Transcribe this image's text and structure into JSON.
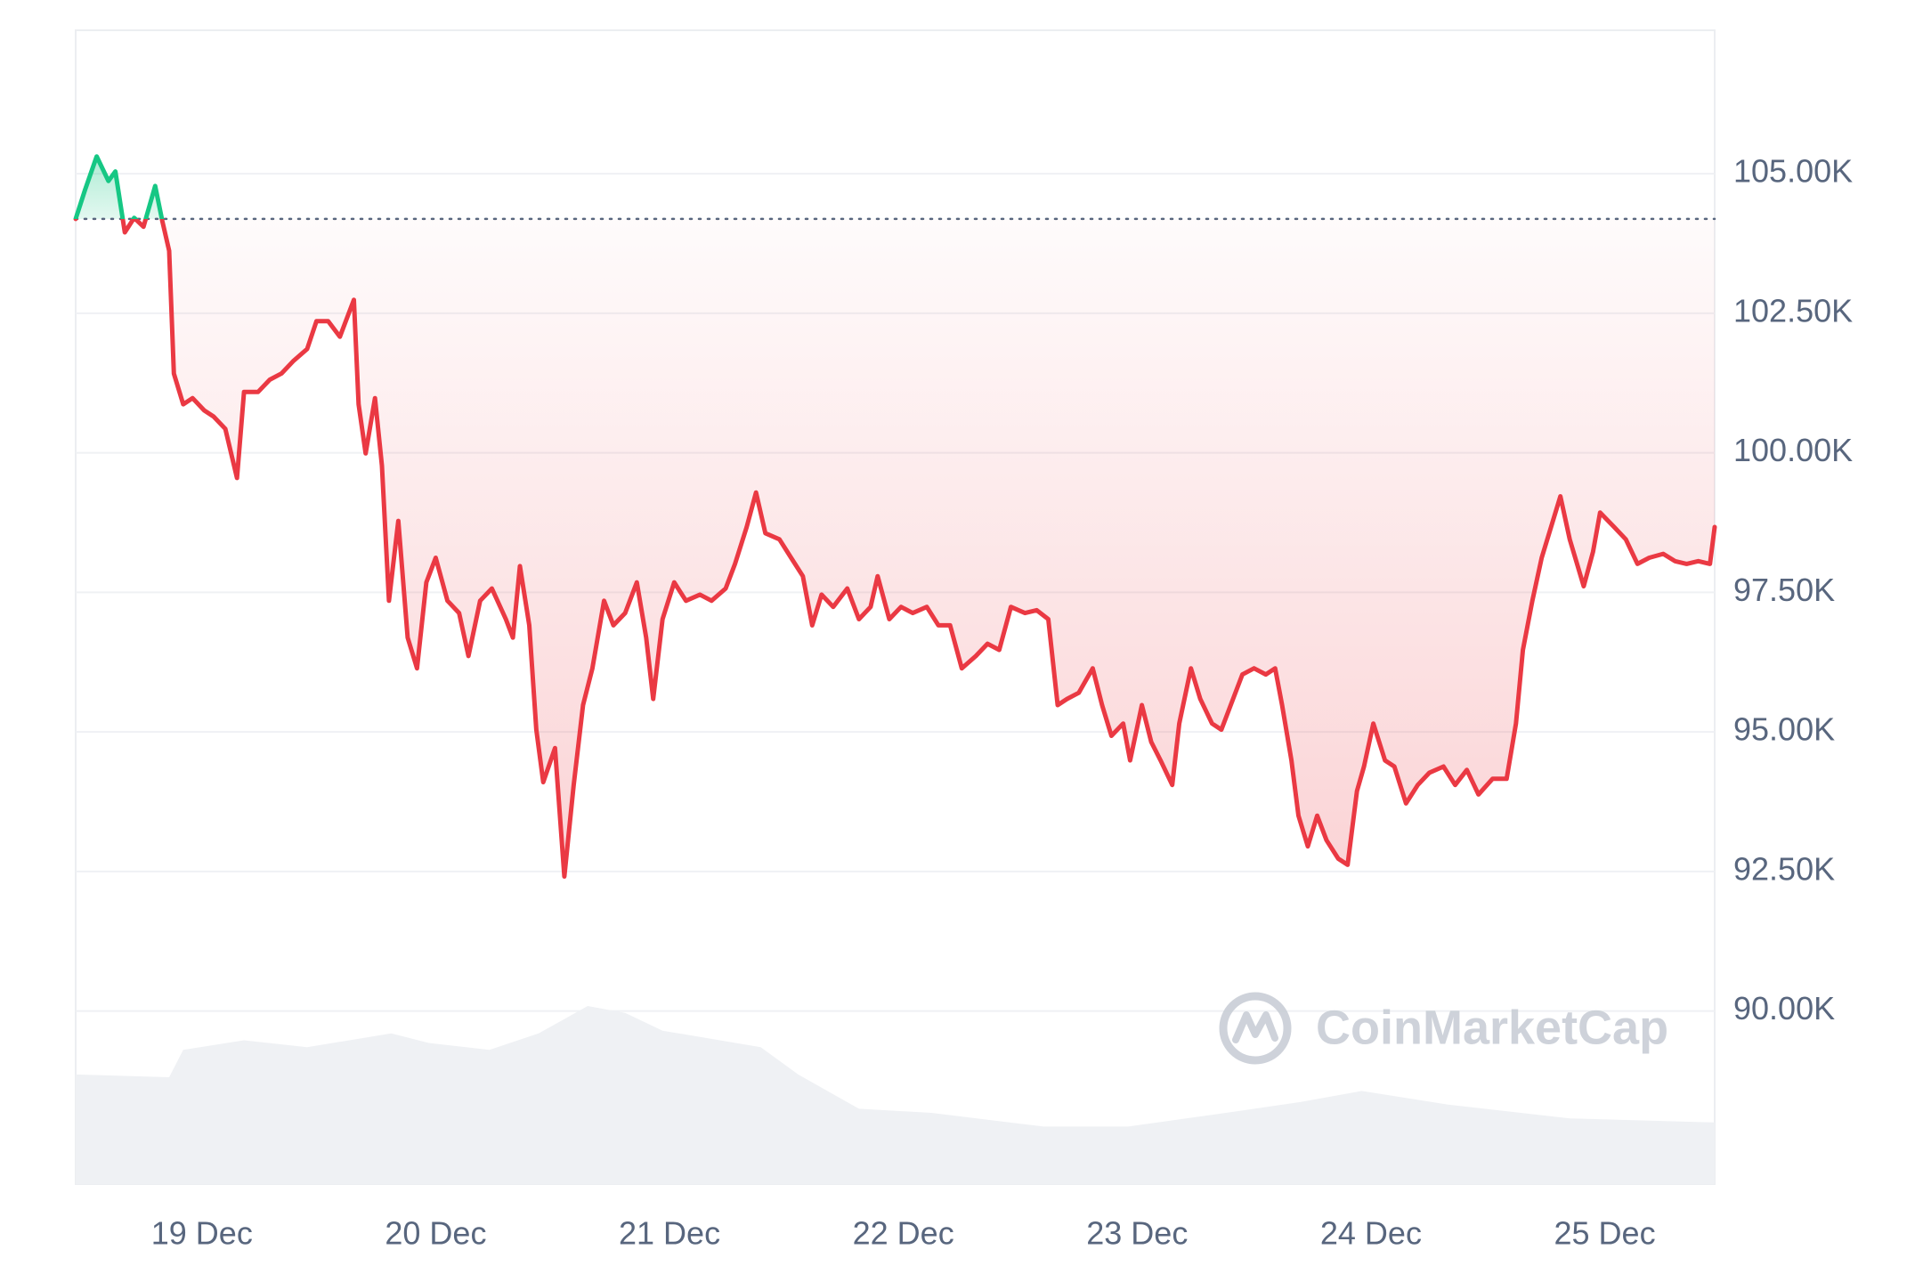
{
  "chart_data": {
    "type": "line",
    "x": [
      18.46,
      18.5,
      18.55,
      18.6,
      18.63,
      18.67,
      18.71,
      18.75,
      18.8,
      18.83,
      18.86,
      18.88,
      18.92,
      18.96,
      19.01,
      19.05,
      19.1,
      19.15,
      19.18,
      19.24,
      19.29,
      19.34,
      19.39,
      19.45,
      19.49,
      19.54,
      19.59,
      19.65,
      19.67,
      19.7,
      19.74,
      19.77,
      19.8,
      19.84,
      19.88,
      19.92,
      19.96,
      20.0,
      20.05,
      20.1,
      20.14,
      20.19,
      20.24,
      20.3,
      20.33,
      20.36,
      20.4,
      20.43,
      20.46,
      20.51,
      20.55,
      20.59,
      20.63,
      20.67,
      20.72,
      20.76,
      20.81,
      20.86,
      20.9,
      20.93,
      20.97,
      21.02,
      21.07,
      21.13,
      21.18,
      21.24,
      21.28,
      21.33,
      21.37,
      21.41,
      21.47,
      21.52,
      21.57,
      21.61,
      21.65,
      21.7,
      21.76,
      21.81,
      21.86,
      21.89,
      21.94,
      21.99,
      22.04,
      22.1,
      22.15,
      22.2,
      22.25,
      22.31,
      22.36,
      22.41,
      22.46,
      22.52,
      22.57,
      22.62,
      22.66,
      22.7,
      22.75,
      22.81,
      22.85,
      22.89,
      22.94,
      22.97,
      23.02,
      23.06,
      23.1,
      23.15,
      23.18,
      23.23,
      23.27,
      23.32,
      23.36,
      23.4,
      23.45,
      23.5,
      23.55,
      23.59,
      23.62,
      23.66,
      23.69,
      23.73,
      23.77,
      23.81,
      23.86,
      23.9,
      23.94,
      23.97,
      24.01,
      24.06,
      24.1,
      24.15,
      24.2,
      24.25,
      24.31,
      24.36,
      24.41,
      24.46,
      24.52,
      24.58,
      24.62,
      24.65,
      24.69,
      24.73,
      24.77,
      24.81,
      24.85,
      24.91,
      24.95,
      24.98,
      25.04,
      25.09,
      25.14,
      25.19,
      25.25,
      25.3,
      25.35,
      25.4,
      25.45,
      25.47
    ],
    "values": [
      104190,
      104710,
      105310,
      104870,
      105040,
      103950,
      104210,
      104050,
      104780,
      104160,
      103620,
      101420,
      100870,
      100980,
      100760,
      100650,
      100430,
      99550,
      101090,
      101090,
      101310,
      101420,
      101640,
      101860,
      102360,
      102360,
      102080,
      102740,
      100870,
      99990,
      100980,
      99770,
      97350,
      98780,
      96690,
      96140,
      97680,
      98120,
      97350,
      97130,
      96360,
      97350,
      97570,
      97020,
      96690,
      97970,
      96910,
      95040,
      94100,
      94710,
      92410,
      94050,
      95480,
      96140,
      97350,
      96910,
      97130,
      97680,
      96690,
      95590,
      97020,
      97680,
      97350,
      97460,
      97350,
      97570,
      98010,
      98670,
      99290,
      98560,
      98450,
      98120,
      97790,
      96910,
      97460,
      97240,
      97570,
      97020,
      97240,
      97790,
      97020,
      97240,
      97130,
      97240,
      96910,
      96910,
      96140,
      96360,
      96580,
      96470,
      97240,
      97130,
      97180,
      97020,
      95480,
      95590,
      95700,
      96140,
      95480,
      94930,
      95150,
      94490,
      95480,
      94820,
      94490,
      94050,
      95150,
      96140,
      95590,
      95150,
      95040,
      95480,
      96030,
      96140,
      96030,
      96140,
      95480,
      94490,
      93500,
      92950,
      93500,
      93060,
      92730,
      92620,
      93940,
      94380,
      95150,
      94490,
      94380,
      93720,
      94050,
      94270,
      94380,
      94050,
      94320,
      93880,
      94160,
      94160,
      95150,
      96470,
      97350,
      98120,
      98670,
      99220,
      98450,
      97610,
      98230,
      98930,
      98670,
      98450,
      98010,
      98120,
      98190,
      98060,
      98010,
      98060,
      98010,
      98670
    ],
    "baseline": 104190,
    "color_up": "#16c784",
    "color_down": "#ea3943",
    "xlim": [
      18.46,
      25.47
    ],
    "xticks": [
      {
        "value": 19,
        "label": "19 Dec"
      },
      {
        "value": 20,
        "label": "20 Dec"
      },
      {
        "value": 21,
        "label": "21 Dec"
      },
      {
        "value": 22,
        "label": "22 Dec"
      },
      {
        "value": 23,
        "label": "23 Dec"
      },
      {
        "value": 24,
        "label": "24 Dec"
      },
      {
        "value": 25,
        "label": "25 Dec"
      }
    ],
    "ylim": [
      86900,
      107570
    ],
    "yticks": [
      {
        "value": 90000,
        "label": "90.00K"
      },
      {
        "value": 92500,
        "label": "92.50K"
      },
      {
        "value": 95000,
        "label": "95.00K"
      },
      {
        "value": 97500,
        "label": "97.50K"
      },
      {
        "value": 100000,
        "label": "100.00K"
      },
      {
        "value": 102500,
        "label": "102.50K"
      },
      {
        "value": 105000,
        "label": "105.00K"
      }
    ],
    "grid": true,
    "volume": {
      "x": [
        18.46,
        18.86,
        18.92,
        19.18,
        19.45,
        19.81,
        19.97,
        20.23,
        20.44,
        20.65,
        20.81,
        20.97,
        21.39,
        21.55,
        21.81,
        22.12,
        22.6,
        22.96,
        23.38,
        23.7,
        23.96,
        24.33,
        24.85,
        25.47
      ],
      "values": [
        80,
        78,
        98,
        105,
        100,
        110,
        103,
        98,
        110,
        130,
        125,
        112,
        100,
        80,
        55,
        52,
        42,
        42,
        52,
        60,
        68,
        58,
        48,
        45
      ],
      "color": "#eff1f4"
    },
    "watermark": "CoinMarketCap"
  }
}
